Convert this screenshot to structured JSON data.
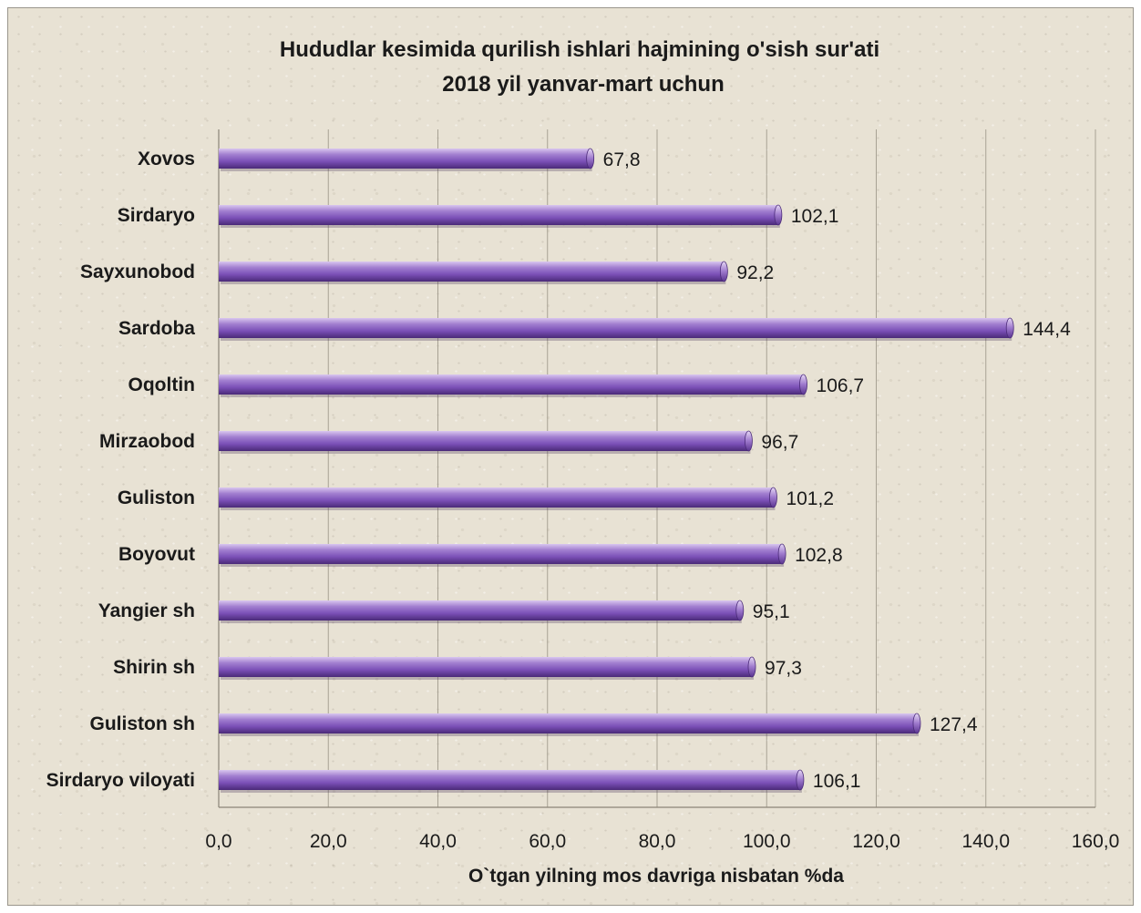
{
  "chart_data": {
    "type": "bar",
    "orientation": "horizontal",
    "title": "Hududlar kesimida qurilish ishlari hajmining o'sish sur'ati",
    "subtitle": "2018 yil yanvar-mart uchun",
    "xlabel": "O`tgan yilning mos davriga nisbatan %da",
    "ylabel": "",
    "categories": [
      "Xovos",
      "Sirdaryo",
      "Sayxunobod",
      "Sardoba",
      "Oqoltin",
      "Mirzaobod",
      "Guliston",
      "Boyovut",
      "Yangier sh",
      "Shirin sh",
      "Guliston sh",
      "Sirdaryo viloyati"
    ],
    "values": [
      67.8,
      102.1,
      92.2,
      144.4,
      106.7,
      96.7,
      101.2,
      102.8,
      95.1,
      97.3,
      127.4,
      106.1
    ],
    "value_labels": [
      "67,8",
      "102,1",
      "92,2",
      "144,4",
      "106,7",
      "96,7",
      "101,2",
      "102,8",
      "95,1",
      "97,3",
      "127,4",
      "106,1"
    ],
    "xlim": [
      0,
      160
    ],
    "xticks": [
      0,
      20,
      40,
      60,
      80,
      100,
      120,
      140,
      160
    ],
    "xtick_labels": [
      "0,0",
      "20,0",
      "40,0",
      "60,0",
      "80,0",
      "100,0",
      "120,0",
      "140,0",
      "160,0"
    ],
    "grid": true,
    "legend": "none",
    "bar_color": "#8a5fc0"
  }
}
